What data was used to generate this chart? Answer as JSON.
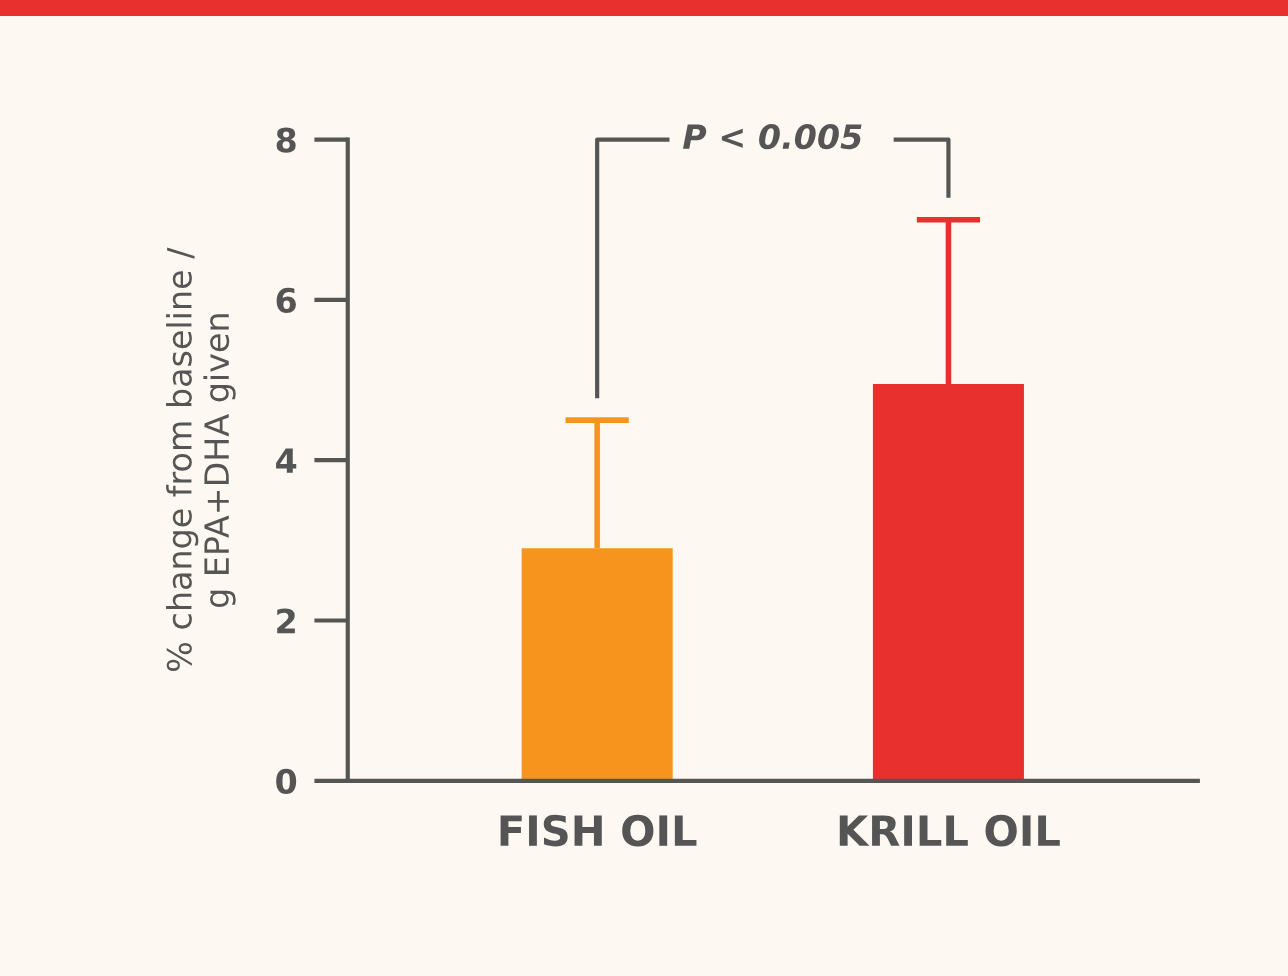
{
  "chart_data": {
    "type": "bar",
    "ylabel": "% change from baseline /\ng EPA+DHA given",
    "categories": [
      "FISH OIL",
      "KRILL OIL"
    ],
    "values": [
      2.9,
      4.95
    ],
    "colors": [
      "#f7941d",
      "#e8302f"
    ],
    "errors": [
      [
        2.9,
        4.5
      ],
      [
        4.95,
        7.0
      ]
    ],
    "ylim": [
      0,
      8
    ],
    "yticks": [
      0,
      2,
      4,
      6,
      8
    ],
    "annotations": [
      "P < 0.005"
    ],
    "grid": false
  }
}
